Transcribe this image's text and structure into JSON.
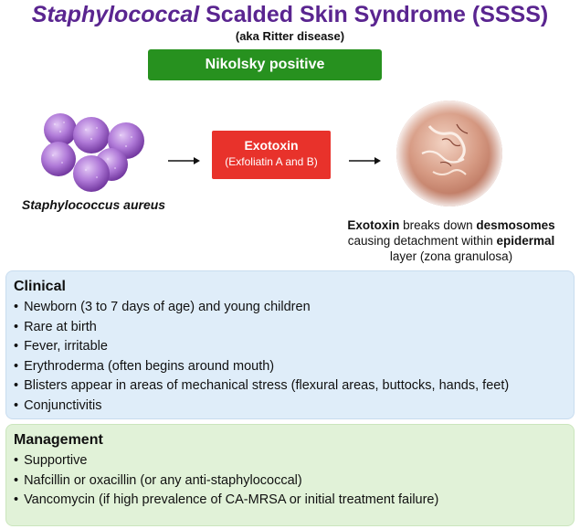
{
  "title": {
    "italic": "Staphylococcal",
    "rest": " Scalded Skin Syndrome (SSSS)"
  },
  "subtitle": "(aka Ritter disease)",
  "sign_badge": "Nikolsky positive",
  "pathway": {
    "organism": "Staphylococcus aureus",
    "toxin_title": "Exotoxin",
    "toxin_detail": "(Exfoliatin A and B)",
    "effect": {
      "p1": "Exotoxin",
      "p2": " breaks down ",
      "p3": "desmosomes",
      "p4": "causing detachment within ",
      "p5": "epidermal",
      "p6": "layer (zona granulosa)"
    }
  },
  "clinical": {
    "heading": "Clinical",
    "items": [
      "Newborn (3 to 7 days of age) and young children",
      "Rare at birth",
      "Fever, irritable",
      "Erythroderma (often begins around mouth)",
      "Blisters appear in areas of mechanical stress (flexural areas, buttocks, hands, feet)",
      "Conjunctivitis"
    ]
  },
  "management": {
    "heading": "Management",
    "items": [
      "Supportive",
      "Nafcillin or oxacillin (or any anti-staphylococcal)",
      "Vancomycin (if high prevalence of CA-MRSA or initial treatment failure)"
    ]
  },
  "colors": {
    "title": "#5a2590",
    "badge": "#27911f",
    "toxin_box": "#e8322b",
    "clinical_panel": "#dfedf9",
    "management_panel": "#e1f2d8"
  },
  "icons": {
    "organism": "bacteria-cluster-icon",
    "skin": "peeling-skin-icon",
    "arrow": "right-arrow-icon"
  }
}
